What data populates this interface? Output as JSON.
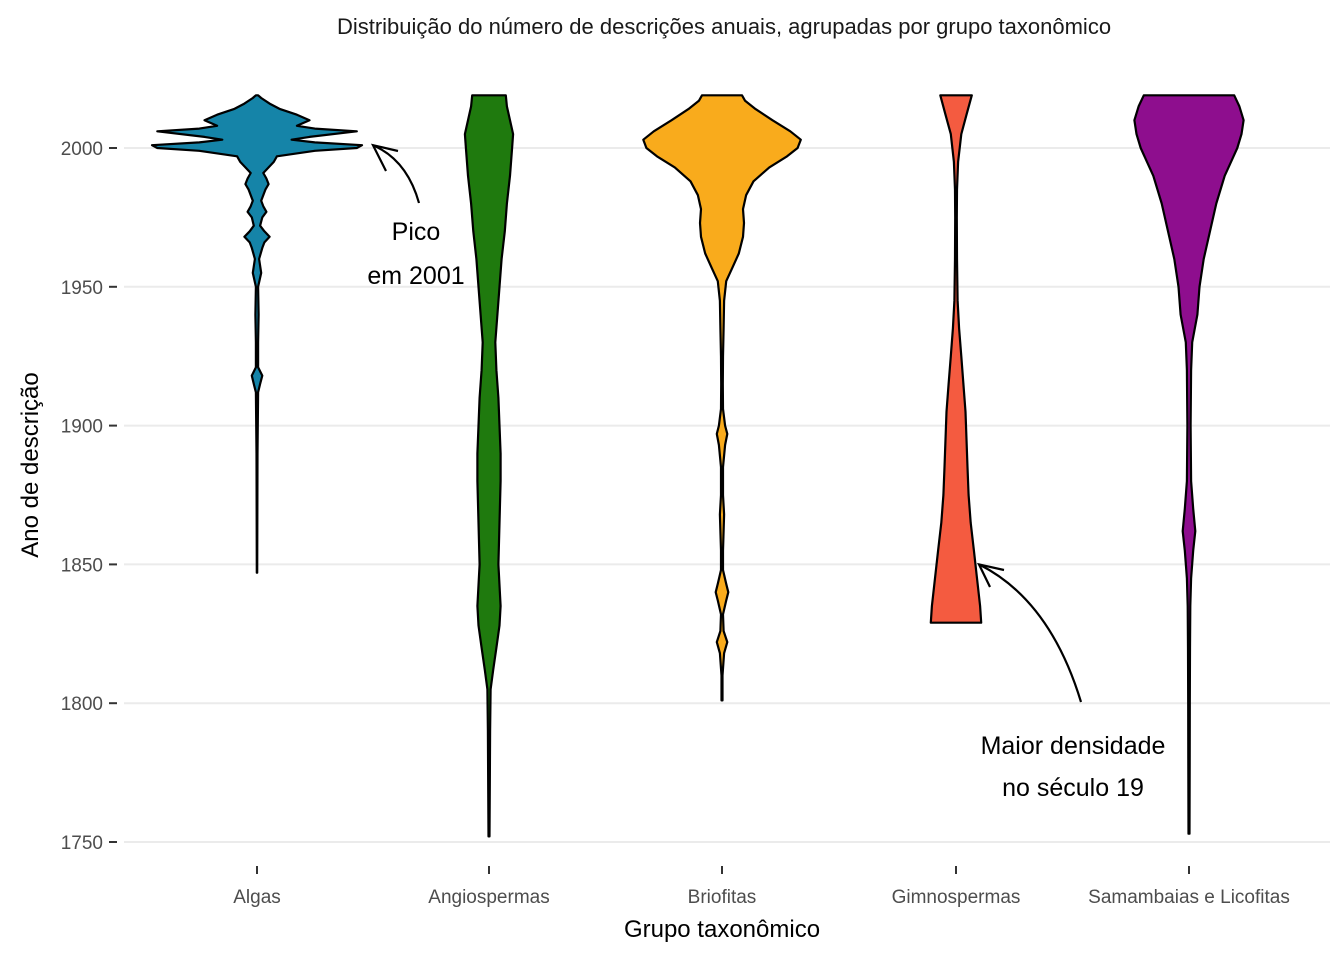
{
  "chart_data": {
    "type": "violin",
    "title": "Distribuição do número de descrições anuais, agrupadas por grupo taxonômico",
    "xlabel": "Grupo taxonômico",
    "ylabel": "Ano de descrição",
    "ylim": [
      1745,
      2026
    ],
    "yticks": [
      1750,
      1800,
      1850,
      1900,
      1950,
      2000
    ],
    "grid": "horizontal",
    "categories": [
      "Algas",
      "Angiospermas",
      "Briofitas",
      "Gimnospermas",
      "Samambaias e Licofitas"
    ],
    "series": [
      {
        "category": "Algas",
        "color": "#1584A8",
        "range": [
          1847,
          2019
        ],
        "profile": [
          [
            1847,
            0.002
          ],
          [
            1890,
            0.005
          ],
          [
            1912,
            0.01
          ],
          [
            1915,
            0.03
          ],
          [
            1918,
            0.05
          ],
          [
            1921,
            0.01
          ],
          [
            1930,
            0.01
          ],
          [
            1940,
            0.015
          ],
          [
            1950,
            0.01
          ],
          [
            1955,
            0.04
          ],
          [
            1960,
            0.02
          ],
          [
            1964,
            0.05
          ],
          [
            1966,
            0.07
          ],
          [
            1968,
            0.12
          ],
          [
            1970,
            0.07
          ],
          [
            1972,
            0.03
          ],
          [
            1975,
            0.05
          ],
          [
            1977,
            0.09
          ],
          [
            1979,
            0.06
          ],
          [
            1981,
            0.04
          ],
          [
            1985,
            0.08
          ],
          [
            1987,
            0.11
          ],
          [
            1989,
            0.09
          ],
          [
            1991,
            0.06
          ],
          [
            1993,
            0.11
          ],
          [
            1995,
            0.16
          ],
          [
            1997,
            0.19
          ],
          [
            1999,
            0.55
          ],
          [
            2000,
            0.95
          ],
          [
            2001,
            1.0
          ],
          [
            2002,
            0.55
          ],
          [
            2003,
            0.33
          ],
          [
            2004,
            0.5
          ],
          [
            2006,
            0.95
          ],
          [
            2007,
            0.55
          ],
          [
            2008,
            0.38
          ],
          [
            2010,
            0.5
          ],
          [
            2012,
            0.38
          ],
          [
            2014,
            0.22
          ],
          [
            2016,
            0.12
          ],
          [
            2018,
            0.04
          ],
          [
            2019,
            0.01
          ]
        ]
      },
      {
        "category": "Angiospermas",
        "color": "#1F7A0E",
        "range": [
          1752,
          2019
        ],
        "profile": [
          [
            1752,
            0.005
          ],
          [
            1770,
            0.008
          ],
          [
            1790,
            0.01
          ],
          [
            1805,
            0.015
          ],
          [
            1812,
            0.04
          ],
          [
            1820,
            0.07
          ],
          [
            1828,
            0.1
          ],
          [
            1835,
            0.11
          ],
          [
            1850,
            0.09
          ],
          [
            1865,
            0.1
          ],
          [
            1880,
            0.11
          ],
          [
            1890,
            0.11
          ],
          [
            1900,
            0.1
          ],
          [
            1910,
            0.09
          ],
          [
            1920,
            0.07
          ],
          [
            1930,
            0.06
          ],
          [
            1940,
            0.08
          ],
          [
            1950,
            0.1
          ],
          [
            1960,
            0.12
          ],
          [
            1970,
            0.15
          ],
          [
            1980,
            0.17
          ],
          [
            1990,
            0.2
          ],
          [
            2000,
            0.22
          ],
          [
            2005,
            0.23
          ],
          [
            2010,
            0.2
          ],
          [
            2015,
            0.17
          ],
          [
            2019,
            0.16
          ]
        ]
      },
      {
        "category": "Briofitas",
        "color": "#F9AB1C",
        "range": [
          1801,
          2019
        ],
        "profile": [
          [
            1801,
            0.005
          ],
          [
            1810,
            0.005
          ],
          [
            1818,
            0.02
          ],
          [
            1822,
            0.05
          ],
          [
            1826,
            0.015
          ],
          [
            1832,
            0.01
          ],
          [
            1837,
            0.04
          ],
          [
            1840,
            0.06
          ],
          [
            1843,
            0.04
          ],
          [
            1848,
            0.01
          ],
          [
            1855,
            0.01
          ],
          [
            1862,
            0.015
          ],
          [
            1868,
            0.02
          ],
          [
            1875,
            0.01
          ],
          [
            1885,
            0.01
          ],
          [
            1893,
            0.03
          ],
          [
            1897,
            0.05
          ],
          [
            1900,
            0.03
          ],
          [
            1906,
            0.01
          ],
          [
            1915,
            0.008
          ],
          [
            1925,
            0.01
          ],
          [
            1935,
            0.015
          ],
          [
            1945,
            0.02
          ],
          [
            1952,
            0.04
          ],
          [
            1957,
            0.1
          ],
          [
            1962,
            0.16
          ],
          [
            1968,
            0.2
          ],
          [
            1973,
            0.21
          ],
          [
            1978,
            0.2
          ],
          [
            1983,
            0.23
          ],
          [
            1988,
            0.3
          ],
          [
            1993,
            0.45
          ],
          [
            1997,
            0.62
          ],
          [
            2000,
            0.72
          ],
          [
            2003,
            0.75
          ],
          [
            2006,
            0.65
          ],
          [
            2010,
            0.48
          ],
          [
            2014,
            0.32
          ],
          [
            2017,
            0.22
          ],
          [
            2019,
            0.19
          ]
        ]
      },
      {
        "category": "Gimnospermas",
        "color": "#F45B40",
        "range": [
          1829,
          2019
        ],
        "profile": [
          [
            1829,
            0.24
          ],
          [
            1835,
            0.23
          ],
          [
            1845,
            0.2
          ],
          [
            1855,
            0.17
          ],
          [
            1865,
            0.14
          ],
          [
            1875,
            0.12
          ],
          [
            1885,
            0.11
          ],
          [
            1895,
            0.1
          ],
          [
            1905,
            0.09
          ],
          [
            1915,
            0.07
          ],
          [
            1925,
            0.05
          ],
          [
            1935,
            0.03
          ],
          [
            1945,
            0.015
          ],
          [
            1960,
            0.01
          ],
          [
            1975,
            0.008
          ],
          [
            1985,
            0.01
          ],
          [
            1995,
            0.02
          ],
          [
            2005,
            0.05
          ],
          [
            2012,
            0.1
          ],
          [
            2019,
            0.15
          ]
        ]
      },
      {
        "category": "Samambaias e Licofitas",
        "color": "#8E0E8E",
        "range": [
          1753,
          2019
        ],
        "profile": [
          [
            1753,
            0.005
          ],
          [
            1780,
            0.007
          ],
          [
            1800,
            0.008
          ],
          [
            1820,
            0.01
          ],
          [
            1835,
            0.012
          ],
          [
            1845,
            0.02
          ],
          [
            1855,
            0.04
          ],
          [
            1862,
            0.06
          ],
          [
            1870,
            0.04
          ],
          [
            1880,
            0.02
          ],
          [
            1900,
            0.015
          ],
          [
            1920,
            0.02
          ],
          [
            1930,
            0.03
          ],
          [
            1940,
            0.08
          ],
          [
            1950,
            0.1
          ],
          [
            1960,
            0.14
          ],
          [
            1970,
            0.2
          ],
          [
            1980,
            0.26
          ],
          [
            1990,
            0.34
          ],
          [
            1995,
            0.4
          ],
          [
            2000,
            0.46
          ],
          [
            2005,
            0.5
          ],
          [
            2010,
            0.52
          ],
          [
            2015,
            0.48
          ],
          [
            2019,
            0.43
          ]
        ]
      }
    ],
    "annotations": [
      {
        "lines": [
          "Pico",
          "em 2001"
        ],
        "points_to_year": 2001,
        "points_to_category": "Algas"
      },
      {
        "lines": [
          "Maior densidade",
          "no século 19"
        ],
        "points_to_year": 1850,
        "points_to_category": "Gimnospermas"
      }
    ]
  }
}
